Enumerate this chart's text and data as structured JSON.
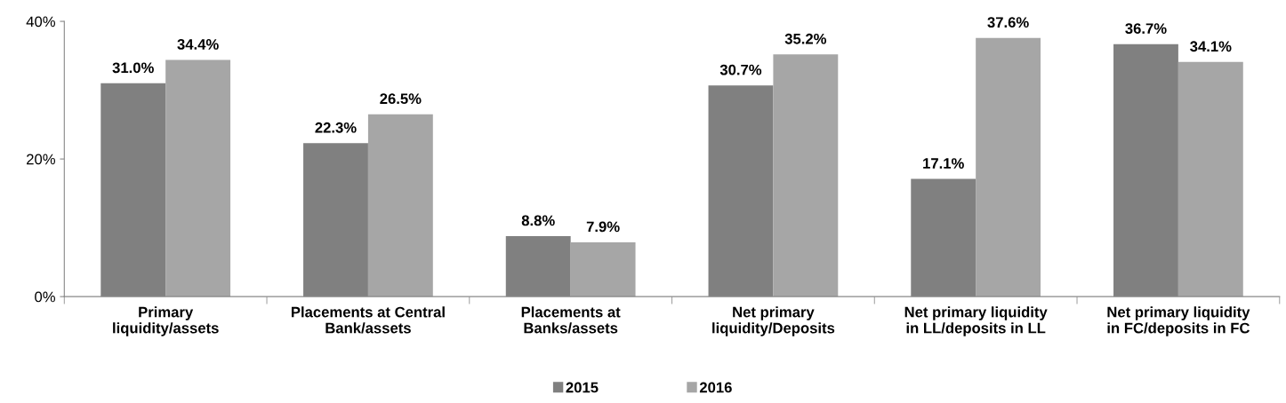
{
  "chart_data": {
    "type": "bar",
    "categories": [
      "Primary\nliquidity/assets",
      "Placements at Central\nBank/assets",
      "Placements at\nBanks/assets",
      "Net primary\nliquidity/Deposits",
      "Net primary liquidity\nin LL/deposits in LL",
      "Net primary liquidity\nin FC/deposits in FC"
    ],
    "series": [
      {
        "name": "2015",
        "color": "#808080",
        "values": [
          31.0,
          22.3,
          8.8,
          30.7,
          17.1,
          36.7
        ],
        "value_labels": [
          "31.0%",
          "22.3%",
          "8.8%",
          "30.7%",
          "17.1%",
          "36.7%"
        ]
      },
      {
        "name": "2016",
        "color": "#a6a6a6",
        "values": [
          34.4,
          26.5,
          7.9,
          35.2,
          37.6,
          34.1
        ],
        "value_labels": [
          "34.4%",
          "26.5%",
          "7.9%",
          "35.2%",
          "37.6%",
          "34.1%"
        ]
      }
    ],
    "ylim": [
      0,
      40
    ],
    "yticks": [
      {
        "value": 0,
        "label": "0%"
      },
      {
        "value": 20,
        "label": "20%"
      },
      {
        "value": 40,
        "label": "40%"
      }
    ],
    "grid": false,
    "legend": "bottom"
  }
}
